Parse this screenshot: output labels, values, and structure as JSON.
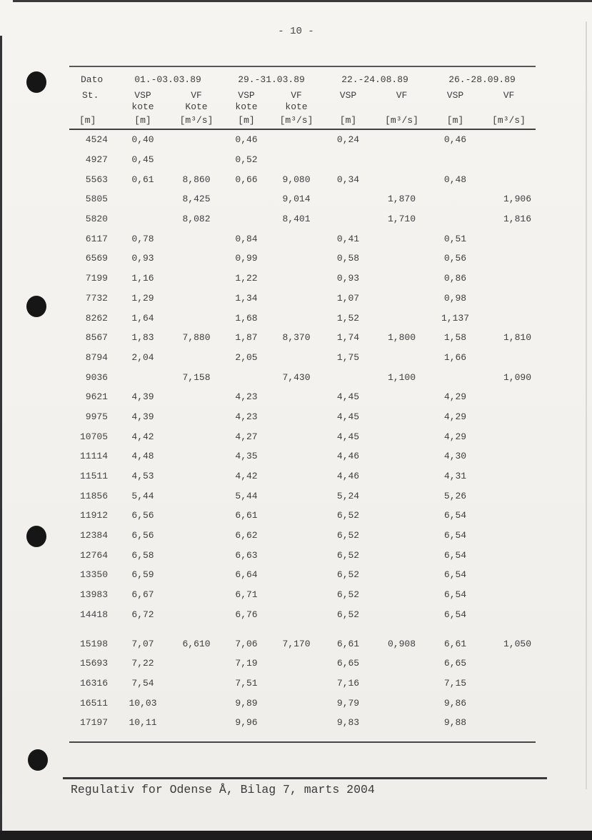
{
  "page": {
    "number": "- 10 -",
    "footer": "Regulativ for Odense Å, Bilag 7, marts 2004"
  },
  "table": {
    "corner": {
      "dato": "Dato",
      "st": "St.",
      "st_unit": "[m]"
    },
    "dates": [
      "01.-03.03.89",
      "29.-31.03.89",
      "22.-24.08.89",
      "26.-28.09.89"
    ],
    "columns": [
      {
        "l1": "VSP",
        "l2": "kote",
        "unit": "[m]"
      },
      {
        "l1": "VF",
        "l2": "Kote",
        "unit": "[m³/s]"
      },
      {
        "l1": "VSP",
        "l2": "kote",
        "unit": "[m]"
      },
      {
        "l1": "VF",
        "l2": "kote",
        "unit": "[m³/s]"
      },
      {
        "l1": "VSP",
        "l2": "",
        "unit": "[m]"
      },
      {
        "l1": "VF",
        "l2": "",
        "unit": "[m³/s]"
      },
      {
        "l1": "VSP",
        "l2": "",
        "unit": "[m]"
      },
      {
        "l1": "VF",
        "l2": "",
        "unit": "[m³/s]"
      }
    ],
    "gap_row_index": 25,
    "rows": [
      [
        "4524",
        "0,40",
        "",
        "0,46",
        "",
        "0,24",
        "",
        "0,46",
        ""
      ],
      [
        "4927",
        "0,45",
        "",
        "0,52",
        "",
        "",
        "",
        "",
        ""
      ],
      [
        "5563",
        "0,61",
        "8,860",
        "0,66",
        "9,080",
        "0,34",
        "",
        "0,48",
        ""
      ],
      [
        "5805",
        "",
        "8,425",
        "",
        "9,014",
        "",
        "1,870",
        "",
        "1,906"
      ],
      [
        "5820",
        "",
        "8,082",
        "",
        "8,401",
        "",
        "1,710",
        "",
        "1,816"
      ],
      [
        "6117",
        "0,78",
        "",
        "0,84",
        "",
        "0,41",
        "",
        "0,51",
        ""
      ],
      [
        "6569",
        "0,93",
        "",
        "0,99",
        "",
        "0,58",
        "",
        "0,56",
        ""
      ],
      [
        "7199",
        "1,16",
        "",
        "1,22",
        "",
        "0,93",
        "",
        "0,86",
        ""
      ],
      [
        "7732",
        "1,29",
        "",
        "1,34",
        "",
        "1,07",
        "",
        "0,98",
        ""
      ],
      [
        "8262",
        "1,64",
        "",
        "1,68",
        "",
        "1,52",
        "",
        "1,137",
        ""
      ],
      [
        "8567",
        "1,83",
        "7,880",
        "1,87",
        "8,370",
        "1,74",
        "1,800",
        "1,58",
        "1,810"
      ],
      [
        "8794",
        "2,04",
        "",
        "2,05",
        "",
        "1,75",
        "",
        "1,66",
        ""
      ],
      [
        "9036",
        "",
        "7,158",
        "",
        "7,430",
        "",
        "1,100",
        "",
        "1,090"
      ],
      [
        "9621",
        "4,39",
        "",
        "4,23",
        "",
        "4,45",
        "",
        "4,29",
        ""
      ],
      [
        "9975",
        "4,39",
        "",
        "4,23",
        "",
        "4,45",
        "",
        "4,29",
        ""
      ],
      [
        "10705",
        "4,42",
        "",
        "4,27",
        "",
        "4,45",
        "",
        "4,29",
        ""
      ],
      [
        "11114",
        "4,48",
        "",
        "4,35",
        "",
        "4,46",
        "",
        "4,30",
        ""
      ],
      [
        "11511",
        "4,53",
        "",
        "4,42",
        "",
        "4,46",
        "",
        "4,31",
        ""
      ],
      [
        "11856",
        "5,44",
        "",
        "5,44",
        "",
        "5,24",
        "",
        "5,26",
        ""
      ],
      [
        "11912",
        "6,56",
        "",
        "6,61",
        "",
        "6,52",
        "",
        "6,54",
        ""
      ],
      [
        "12384",
        "6,56",
        "",
        "6,62",
        "",
        "6,52",
        "",
        "6,54",
        ""
      ],
      [
        "12764",
        "6,58",
        "",
        "6,63",
        "",
        "6,52",
        "",
        "6,54",
        ""
      ],
      [
        "13350",
        "6,59",
        "",
        "6,64",
        "",
        "6,52",
        "",
        "6,54",
        ""
      ],
      [
        "13983",
        "6,67",
        "",
        "6,71",
        "",
        "6,52",
        "",
        "6,54",
        ""
      ],
      [
        "14418",
        "6,72",
        "",
        "6,76",
        "",
        "6,52",
        "",
        "6,54",
        ""
      ],
      [
        "15198",
        "7,07",
        "6,610",
        "7,06",
        "7,170",
        "6,61",
        "0,908",
        "6,61",
        "1,050"
      ],
      [
        "15693",
        "7,22",
        "",
        "7,19",
        "",
        "6,65",
        "",
        "6,65",
        ""
      ],
      [
        "16316",
        "7,54",
        "",
        "7,51",
        "",
        "7,16",
        "",
        "7,15",
        ""
      ],
      [
        "16511",
        "10,03",
        "",
        "9,89",
        "",
        "9,79",
        "",
        "9,86",
        ""
      ],
      [
        "17197",
        "10,11",
        "",
        "9,96",
        "",
        "9,83",
        "",
        "9,88",
        ""
      ]
    ]
  }
}
